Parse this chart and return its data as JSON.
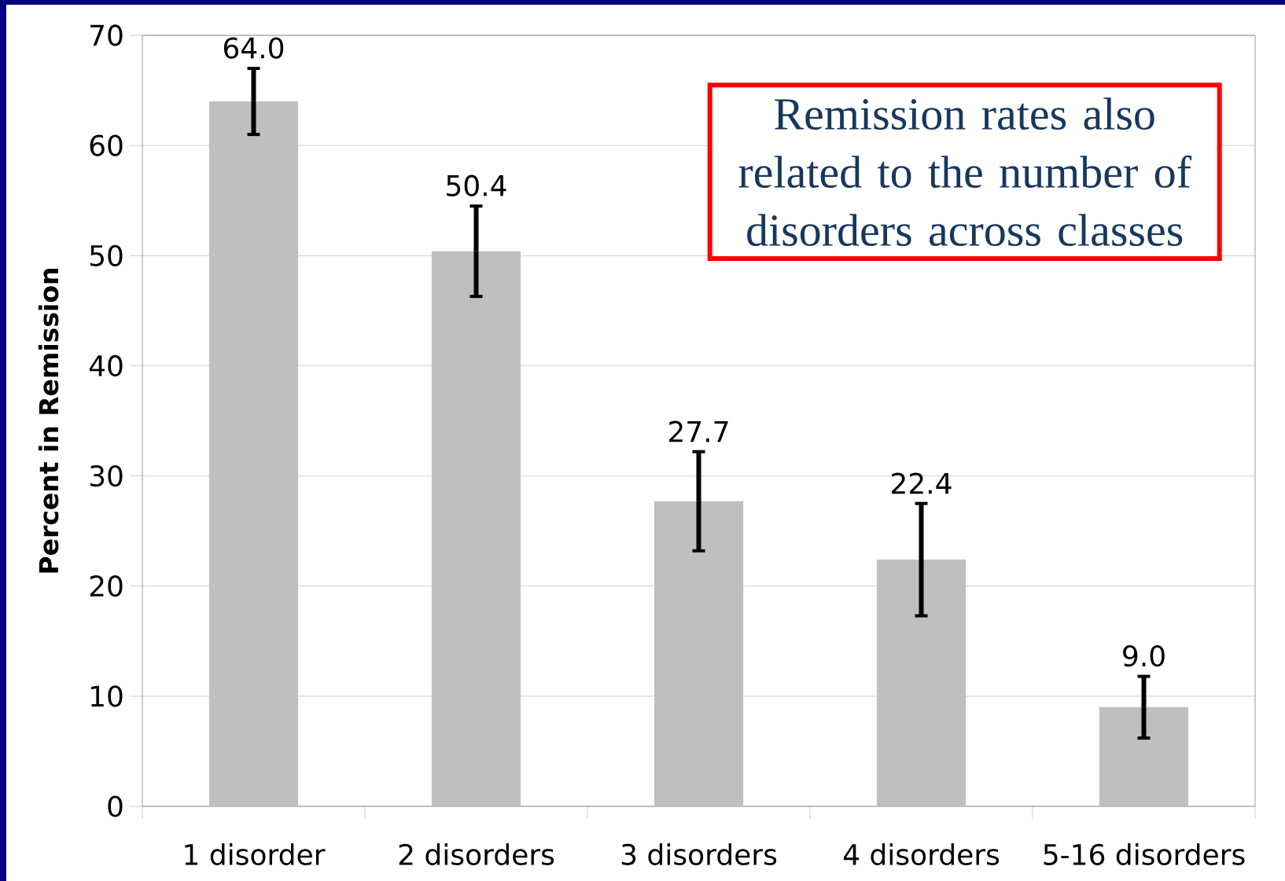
{
  "chart_data": {
    "type": "bar",
    "categories": [
      "1 disorder",
      "2 disorders",
      "3 disorders",
      "4 disorders",
      "5-16 disorders"
    ],
    "values": [
      64.0,
      50.4,
      27.7,
      22.4,
      9.0
    ],
    "errors": [
      3.0,
      4.1,
      4.5,
      5.1,
      2.8
    ],
    "value_labels": [
      "64.0",
      "50.4",
      "27.7",
      "22.4",
      "9.0"
    ],
    "color": "#bfbfbf",
    "ylabel": "Percent in Remission",
    "ylim": [
      0,
      70
    ],
    "yticks": [
      0,
      10,
      20,
      30,
      40,
      50,
      60,
      70
    ],
    "grid": "y",
    "annotations": [
      "Remission rates also related to the number of disorders across classes"
    ]
  }
}
